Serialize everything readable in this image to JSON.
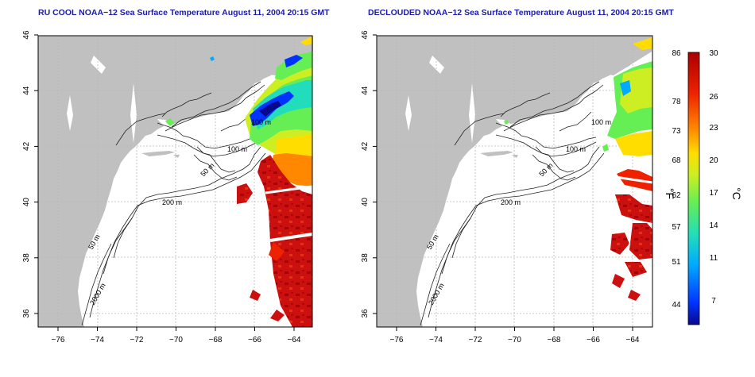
{
  "panels": [
    {
      "title": "RU COOL NOAA−12 Sea Surface Temperature August 11, 2004 20:15 GMT",
      "contour_labels": [
        "100 m",
        "100 m",
        "50 m",
        "200 m",
        "50 m",
        "2000 m"
      ]
    },
    {
      "title": "DECLOUDED NOAA−12 Sea Surface Temperature August 11, 2004 20:15 GMT",
      "contour_labels": [
        "100 m",
        "100 m",
        "50 m",
        "200 m",
        "50 m",
        "2000 m"
      ]
    }
  ],
  "map_axes": {
    "lon_ticks": [
      "−76",
      "−74",
      "−72",
      "−70",
      "−68",
      "−66",
      "−64"
    ],
    "lat_ticks": [
      "36",
      "38",
      "40",
      "42",
      "44",
      "46"
    ]
  },
  "colorbar": {
    "label_f": "°F",
    "label_c": "°C",
    "f_ticks": [
      "86",
      "78",
      "73",
      "68",
      "62",
      "57",
      "51",
      "44"
    ],
    "c_ticks": [
      "30",
      "26",
      "23",
      "20",
      "17",
      "14",
      "11",
      "7"
    ],
    "colors": [
      "#08088c",
      "#0033ff",
      "#00aaff",
      "#22ddbb",
      "#66ee55",
      "#ccee22",
      "#ffdd00",
      "#ff8800",
      "#ee2200",
      "#aa0000"
    ]
  },
  "colors": {
    "land": "#c0c0c0",
    "ocean": "#ffffff",
    "title": "#1a1aa8"
  }
}
